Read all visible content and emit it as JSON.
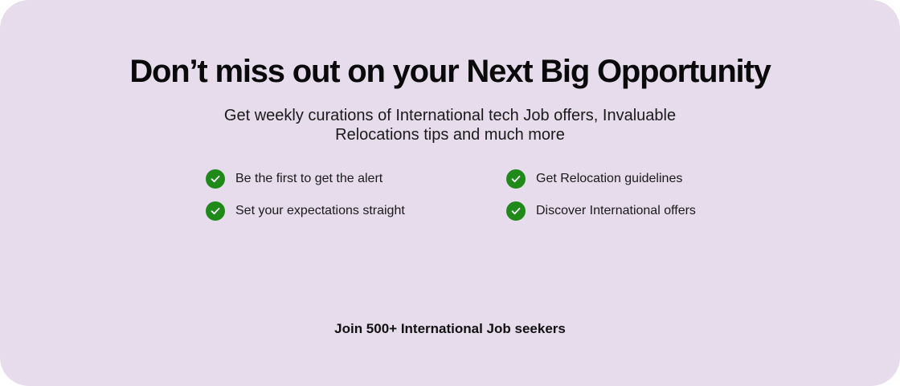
{
  "headline": "Don’t miss out on your Next Big Opportunity",
  "subheadline_line1": "Get weekly curations of International tech Job offers, Invaluable",
  "subheadline_line2": "Relocations tips and much more",
  "features": [
    {
      "label": "Be the first to get the alert",
      "icon": "check-circle-icon"
    },
    {
      "label": "Get Relocation guidelines",
      "icon": "check-circle-icon"
    },
    {
      "label": "Set your expectations straight",
      "icon": "check-circle-icon"
    },
    {
      "label": "Discover International offers",
      "icon": "check-circle-icon"
    }
  ],
  "footer_note": "Join 500+ International Job seekers",
  "colors": {
    "background": "#e6dcec",
    "check": "#1f8a1a",
    "text": "#111111"
  }
}
